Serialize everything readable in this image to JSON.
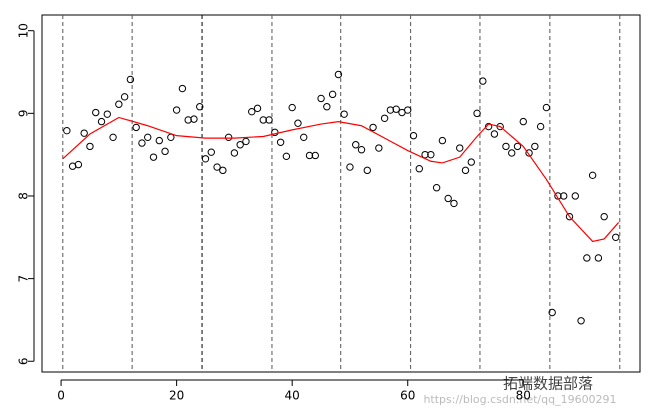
{
  "chart_data": {
    "type": "scatter",
    "x": [
      1,
      2,
      3,
      4,
      5,
      6,
      7,
      8,
      9,
      10,
      11,
      12,
      13,
      14,
      15,
      16,
      17,
      18,
      19,
      20,
      21,
      22,
      23,
      24,
      25,
      26,
      27,
      28,
      29,
      30,
      31,
      32,
      33,
      34,
      35,
      36,
      37,
      38,
      39,
      40,
      41,
      42,
      43,
      44,
      45,
      46,
      47,
      48,
      49,
      50,
      51,
      52,
      53,
      54,
      55,
      56,
      57,
      58,
      59,
      60,
      61,
      62,
      63,
      64,
      65,
      66,
      67,
      68,
      69,
      70,
      71,
      72,
      73,
      74,
      75,
      76,
      77,
      78,
      79,
      80,
      81,
      82,
      83,
      84,
      85,
      86,
      87,
      88,
      89,
      90,
      91,
      92,
      93,
      94,
      96
    ],
    "values": [
      8.79,
      8.36,
      8.38,
      8.76,
      8.6,
      9.01,
      8.9,
      8.99,
      8.71,
      9.11,
      9.2,
      9.41,
      8.83,
      8.64,
      8.71,
      8.47,
      8.67,
      8.54,
      8.71,
      9.04,
      9.3,
      8.92,
      8.93,
      9.08,
      8.45,
      8.53,
      8.35,
      8.31,
      8.71,
      8.52,
      8.62,
      8.66,
      9.02,
      9.06,
      8.92,
      8.92,
      8.77,
      8.65,
      8.48,
      9.07,
      8.88,
      8.71,
      8.49,
      8.49,
      9.18,
      9.08,
      9.23,
      9.47,
      8.99,
      8.35,
      8.62,
      8.56,
      8.31,
      8.83,
      8.58,
      8.94,
      9.04,
      9.05,
      9.01,
      9.04,
      8.73,
      8.33,
      8.5,
      8.5,
      8.1,
      8.67,
      7.97,
      7.91,
      8.58,
      8.31,
      8.41,
      9.0,
      9.39,
      8.84,
      8.75,
      8.84,
      8.6,
      8.52,
      8.6,
      8.9,
      8.52,
      8.6,
      8.84,
      9.07,
      6.59,
      8.0,
      8.0,
      7.75,
      8.0,
      6.49,
      7.25,
      8.25,
      7.25,
      7.75,
      7.5
    ],
    "color": "#000000",
    "fit": {
      "type": "line",
      "color": "#ff0000",
      "x": [
        0.3,
        5,
        10,
        15,
        20,
        25,
        30,
        35,
        40,
        45,
        48,
        52,
        56,
        60,
        64,
        66,
        69,
        72,
        74,
        76,
        80,
        84,
        88,
        92,
        94,
        96.5
      ],
      "values": [
        8.45,
        8.75,
        8.95,
        8.85,
        8.73,
        8.7,
        8.7,
        8.72,
        8.8,
        8.87,
        8.9,
        8.85,
        8.7,
        8.55,
        8.42,
        8.4,
        8.47,
        8.72,
        8.87,
        8.84,
        8.6,
        8.2,
        7.75,
        7.45,
        7.48,
        7.68
      ]
    },
    "vlines": {
      "values": [
        0.3,
        12.3,
        24.4,
        36.5,
        48.4,
        60.5,
        72.5,
        84.6,
        96.7
      ],
      "colors": [
        "#555555",
        "#555555",
        "#000000",
        "#555555",
        "#555555",
        "#555555",
        "#555555",
        "#555555",
        "#555555"
      ]
    },
    "xlim": [
      -3.3,
      100.2
    ],
    "ylim": [
      5.87,
      10.19
    ],
    "xticks": [
      0,
      20,
      40,
      60,
      80
    ],
    "yticks": [
      6,
      7,
      8,
      9,
      10
    ],
    "annotations": [
      "拓端数据部落",
      "https://blog.csdn.net/qq_19600291"
    ]
  }
}
